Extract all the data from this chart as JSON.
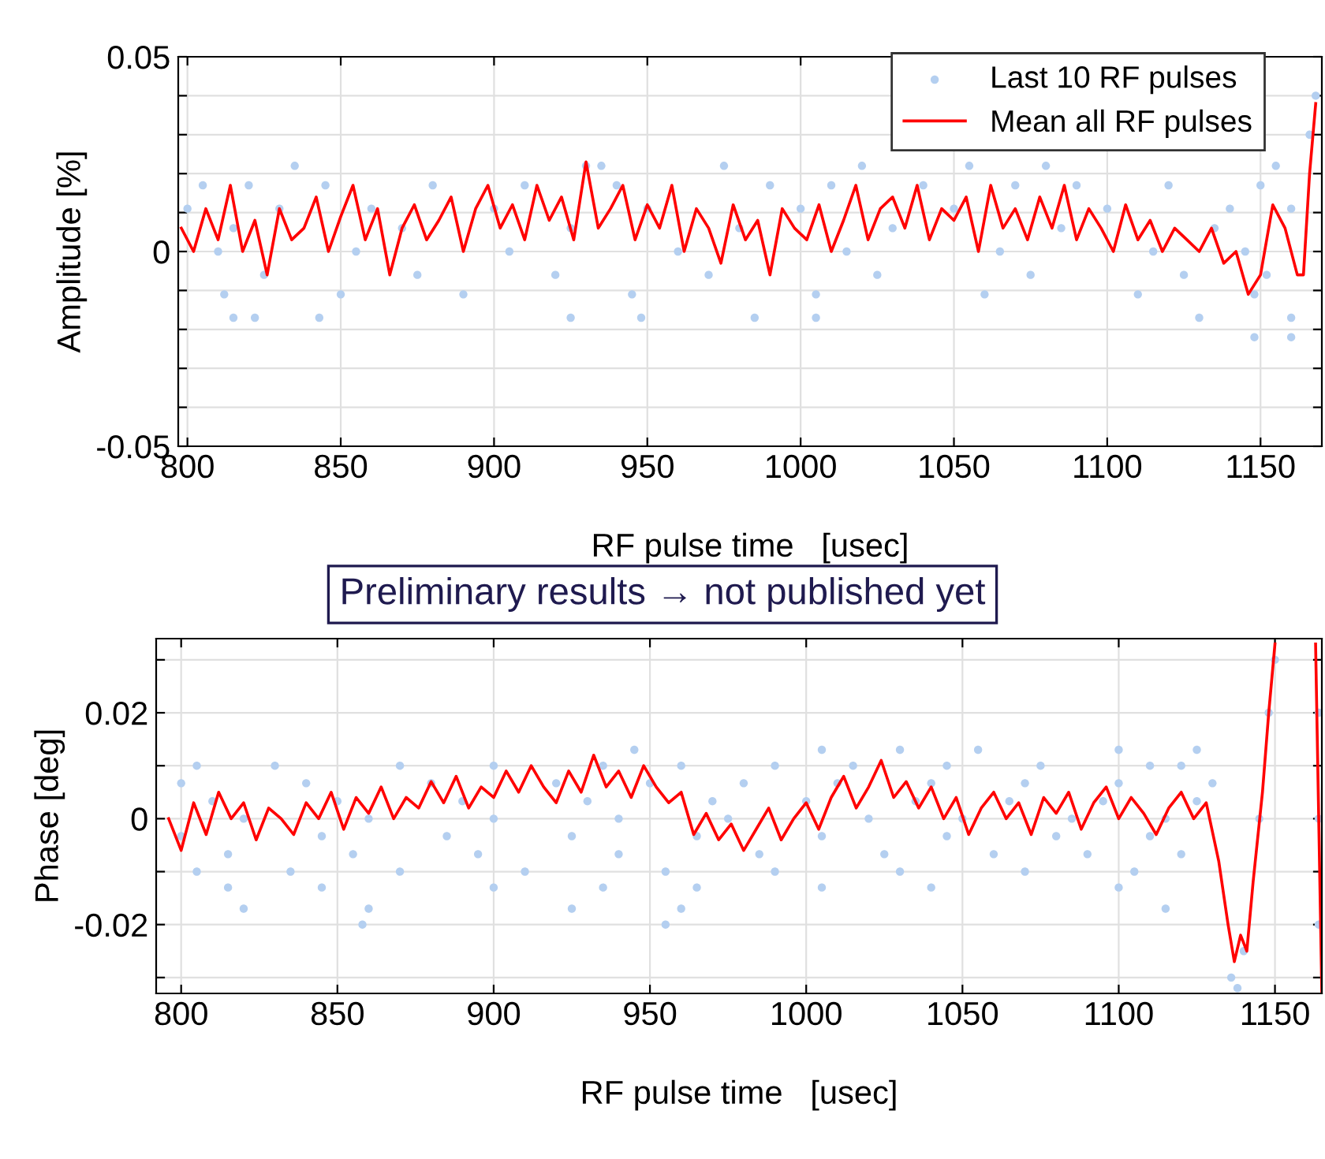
{
  "chart_data": [
    {
      "type": "line",
      "xlabel": "RF pulse time   [usec]",
      "ylabel": "Amplitude [%]",
      "xlim": [
        797,
        1170
      ],
      "xticks": [
        800,
        850,
        900,
        950,
        1000,
        1050,
        1100,
        1150
      ],
      "ylim": [
        -0.05,
        0.05
      ],
      "yticks": [
        -0.05,
        {
          "value": -0.04,
          "label": null
        },
        {
          "value": -0.03,
          "label": null
        },
        {
          "value": -0.02,
          "label": null
        },
        {
          "value": -0.01,
          "label": null
        },
        0,
        {
          "value": 0.01,
          "label": null
        },
        {
          "value": 0.02,
          "label": null
        },
        {
          "value": 0.03,
          "label": null
        },
        {
          "value": 0.04,
          "label": null
        },
        0.05
      ],
      "grid": true,
      "legend": "top right",
      "series": [
        {
          "name": "Last 10 RF pulses",
          "type": "scatter",
          "marker": "circle",
          "color": "#b4cff0",
          "x": [
            805,
            820,
            845,
            880,
            910,
            940,
            990,
            1010,
            1040,
            1070,
            1090,
            1120,
            1150,
            835,
            930,
            935,
            975,
            1020,
            1055,
            1080,
            1155,
            800,
            830,
            860,
            900,
            950,
            1000,
            1050,
            1100,
            1140,
            1160,
            815,
            870,
            925,
            980,
            1030,
            1085,
            1135,
            810,
            855,
            905,
            960,
            1015,
            1065,
            1115,
            1145,
            825,
            875,
            920,
            970,
            1025,
            1075,
            1125,
            1152,
            812,
            850,
            890,
            945,
            1005,
            1060,
            1110,
            1148,
            815,
            822,
            843,
            925,
            948,
            985,
            1005,
            1130,
            1160,
            1148,
            1160,
            1166,
            1168
          ],
          "values": [
            0.017,
            0.017,
            0.017,
            0.017,
            0.017,
            0.017,
            0.017,
            0.017,
            0.017,
            0.017,
            0.017,
            0.017,
            0.017,
            0.022,
            0.022,
            0.022,
            0.022,
            0.022,
            0.022,
            0.022,
            0.022,
            0.011,
            0.011,
            0.011,
            0.011,
            0.011,
            0.011,
            0.011,
            0.011,
            0.011,
            0.011,
            0.006,
            0.006,
            0.006,
            0.006,
            0.006,
            0.006,
            0.006,
            0,
            0,
            0,
            0,
            0,
            0,
            0,
            0,
            -0.006,
            -0.006,
            -0.006,
            -0.006,
            -0.006,
            -0.006,
            -0.006,
            -0.006,
            -0.011,
            -0.011,
            -0.011,
            -0.011,
            -0.011,
            -0.011,
            -0.011,
            -0.011,
            -0.017,
            -0.017,
            -0.017,
            -0.017,
            -0.017,
            -0.017,
            -0.017,
            -0.017,
            -0.017,
            -0.022,
            -0.022,
            0.03,
            0.04
          ]
        },
        {
          "name": "Mean all RF pulses",
          "marker": "none",
          "line_style": "solid",
          "color": "#ff0000",
          "x": [
            798,
            802,
            806,
            810,
            814,
            818,
            822,
            826,
            830,
            834,
            838,
            842,
            846,
            850,
            854,
            858,
            862,
            866,
            870,
            874,
            878,
            882,
            886,
            890,
            894,
            898,
            902,
            906,
            910,
            914,
            918,
            922,
            926,
            930,
            934,
            938,
            942,
            946,
            950,
            954,
            958,
            962,
            966,
            970,
            974,
            978,
            982,
            986,
            990,
            994,
            998,
            1002,
            1006,
            1010,
            1014,
            1018,
            1022,
            1026,
            1030,
            1034,
            1038,
            1042,
            1046,
            1050,
            1054,
            1058,
            1062,
            1066,
            1070,
            1074,
            1078,
            1082,
            1086,
            1090,
            1094,
            1098,
            1102,
            1106,
            1110,
            1114,
            1118,
            1122,
            1126,
            1130,
            1134,
            1138,
            1142,
            1146,
            1150,
            1154,
            1158,
            1162,
            1164,
            1166,
            1168
          ],
          "values": [
            0.006,
            0,
            0.011,
            0.003,
            0.017,
            0,
            0.008,
            -0.006,
            0.011,
            0.003,
            0.006,
            0.014,
            0,
            0.009,
            0.017,
            0.003,
            0.011,
            -0.006,
            0.006,
            0.012,
            0.003,
            0.008,
            0.014,
            0,
            0.011,
            0.017,
            0.006,
            0.012,
            0.003,
            0.017,
            0.008,
            0.014,
            0.003,
            0.023,
            0.006,
            0.011,
            0.017,
            0.003,
            0.012,
            0.006,
            0.017,
            0,
            0.011,
            0.006,
            -0.003,
            0.012,
            0.003,
            0.008,
            -0.006,
            0.011,
            0.006,
            0.003,
            0.012,
            0,
            0.008,
            0.017,
            0.003,
            0.011,
            0.014,
            0.006,
            0.017,
            0.003,
            0.011,
            0.008,
            0.014,
            0,
            0.017,
            0.006,
            0.011,
            0.003,
            0.014,
            0.006,
            0.017,
            0.003,
            0.011,
            0.006,
            0,
            0.012,
            0.003,
            0.008,
            0,
            0.006,
            0.003,
            0,
            0.006,
            -0.003,
            0,
            -0.011,
            -0.006,
            0.012,
            0.006,
            -0.006,
            -0.006,
            0.02,
            0.038
          ]
        }
      ]
    },
    {
      "type": "line",
      "xlabel": "RF pulse time   [usec]",
      "ylabel": "Phase [deg]",
      "annotations": [
        "Preliminary results → not published yet"
      ],
      "xlim": [
        792,
        1165
      ],
      "xticks": [
        800,
        850,
        900,
        950,
        1000,
        1050,
        1100,
        1150
      ],
      "ylim": [
        -0.033,
        0.034
      ],
      "yticks": [
        {
          "value": -0.03,
          "label": null
        },
        -0.02,
        {
          "value": -0.01,
          "label": null
        },
        0,
        {
          "value": 0.01,
          "label": null
        },
        0.02,
        {
          "value": 0.03,
          "label": null
        }
      ],
      "grid": true,
      "series": [
        {
          "type": "scatter",
          "marker": "circle",
          "color": "#b4cff0",
          "x": [
            945,
            1005,
            1030,
            1055,
            1100,
            1125,
            805,
            830,
            870,
            900,
            935,
            960,
            990,
            1015,
            1045,
            1075,
            1110,
            1120,
            800,
            840,
            880,
            920,
            950,
            980,
            1010,
            1040,
            1070,
            1100,
            1130,
            810,
            850,
            890,
            930,
            970,
            1000,
            1035,
            1065,
            1095,
            1125,
            820,
            860,
            900,
            940,
            975,
            1020,
            1050,
            1085,
            1115,
            800,
            845,
            885,
            925,
            965,
            1005,
            1045,
            1080,
            1110,
            815,
            855,
            895,
            940,
            985,
            1025,
            1060,
            1090,
            1120,
            805,
            835,
            870,
            910,
            955,
            990,
            1030,
            1070,
            1105,
            815,
            845,
            900,
            935,
            965,
            1005,
            1040,
            1100,
            820,
            860,
            925,
            960,
            1115,
            858,
            955,
            1136,
            1138,
            1140,
            1145,
            1148,
            1150,
            1164,
            1164,
            1164
          ],
          "values": [
            0.013,
            0.013,
            0.013,
            0.013,
            0.013,
            0.013,
            0.01,
            0.01,
            0.01,
            0.01,
            0.01,
            0.01,
            0.01,
            0.01,
            0.01,
            0.01,
            0.01,
            0.01,
            0.0067,
            0.0067,
            0.0067,
            0.0067,
            0.0067,
            0.0067,
            0.0067,
            0.0067,
            0.0067,
            0.0067,
            0.0067,
            0.0033,
            0.0033,
            0.0033,
            0.0033,
            0.0033,
            0.0033,
            0.0033,
            0.0033,
            0.0033,
            0.0033,
            0,
            0,
            0,
            0,
            0,
            0,
            0,
            0,
            0,
            -0.0033,
            -0.0033,
            -0.0033,
            -0.0033,
            -0.0033,
            -0.0033,
            -0.0033,
            -0.0033,
            -0.0033,
            -0.0067,
            -0.0067,
            -0.0067,
            -0.0067,
            -0.0067,
            -0.0067,
            -0.0067,
            -0.0067,
            -0.0067,
            -0.01,
            -0.01,
            -0.01,
            -0.01,
            -0.01,
            -0.01,
            -0.01,
            -0.01,
            -0.01,
            -0.013,
            -0.013,
            -0.013,
            -0.013,
            -0.013,
            -0.013,
            -0.013,
            -0.013,
            -0.017,
            -0.017,
            -0.017,
            -0.017,
            -0.017,
            -0.02,
            -0.02,
            -0.03,
            -0.032,
            -0.025,
            0,
            0.02,
            0.03,
            0,
            0.02,
            -0.02
          ]
        },
        {
          "marker": "none",
          "line_style": "solid",
          "color": "#ff0000",
          "x": [
            796,
            800,
            804,
            808,
            812,
            816,
            820,
            824,
            828,
            832,
            836,
            840,
            844,
            848,
            852,
            856,
            860,
            864,
            868,
            872,
            876,
            880,
            884,
            888,
            892,
            896,
            900,
            904,
            908,
            912,
            916,
            920,
            924,
            928,
            932,
            936,
            940,
            944,
            948,
            952,
            956,
            960,
            964,
            968,
            972,
            976,
            980,
            984,
            988,
            992,
            996,
            1000,
            1004,
            1008,
            1012,
            1016,
            1020,
            1024,
            1028,
            1032,
            1036,
            1040,
            1044,
            1048,
            1052,
            1056,
            1060,
            1064,
            1068,
            1072,
            1076,
            1080,
            1084,
            1088,
            1092,
            1096,
            1100,
            1104,
            1108,
            1112,
            1116,
            1120,
            1124,
            1128,
            1132,
            1135,
            1137,
            1139,
            1141,
            1143,
            1146,
            1148,
            1150,
            1155,
            1163,
            1165
          ],
          "values": [
            0,
            -0.006,
            0.003,
            -0.003,
            0.005,
            0,
            0.003,
            -0.004,
            0.002,
            0,
            -0.003,
            0.003,
            0,
            0.005,
            -0.002,
            0.004,
            0.001,
            0.006,
            0,
            0.004,
            0.002,
            0.007,
            0.003,
            0.008,
            0.002,
            0.006,
            0.004,
            0.009,
            0.005,
            0.01,
            0.006,
            0.003,
            0.009,
            0.005,
            0.012,
            0.006,
            0.009,
            0.004,
            0.01,
            0.006,
            0.003,
            0.005,
            -0.003,
            0.001,
            -0.004,
            -0.001,
            -0.006,
            -0.002,
            0.002,
            -0.004,
            0,
            0.003,
            -0.002,
            0.004,
            0.008,
            0.002,
            0.006,
            0.011,
            0.004,
            0.007,
            0.002,
            0.006,
            0,
            0.004,
            -0.003,
            0.002,
            0.005,
            0,
            0.003,
            -0.003,
            0.004,
            0.001,
            0.005,
            -0.002,
            0.003,
            0.006,
            0,
            0.004,
            0.001,
            -0.003,
            0.002,
            0.005,
            0,
            0.003,
            -0.008,
            -0.02,
            -0.027,
            -0.022,
            -0.025,
            -0.012,
            0.005,
            0.02,
            0.033,
            null,
            0.033,
            -0.033
          ]
        }
      ]
    }
  ]
}
